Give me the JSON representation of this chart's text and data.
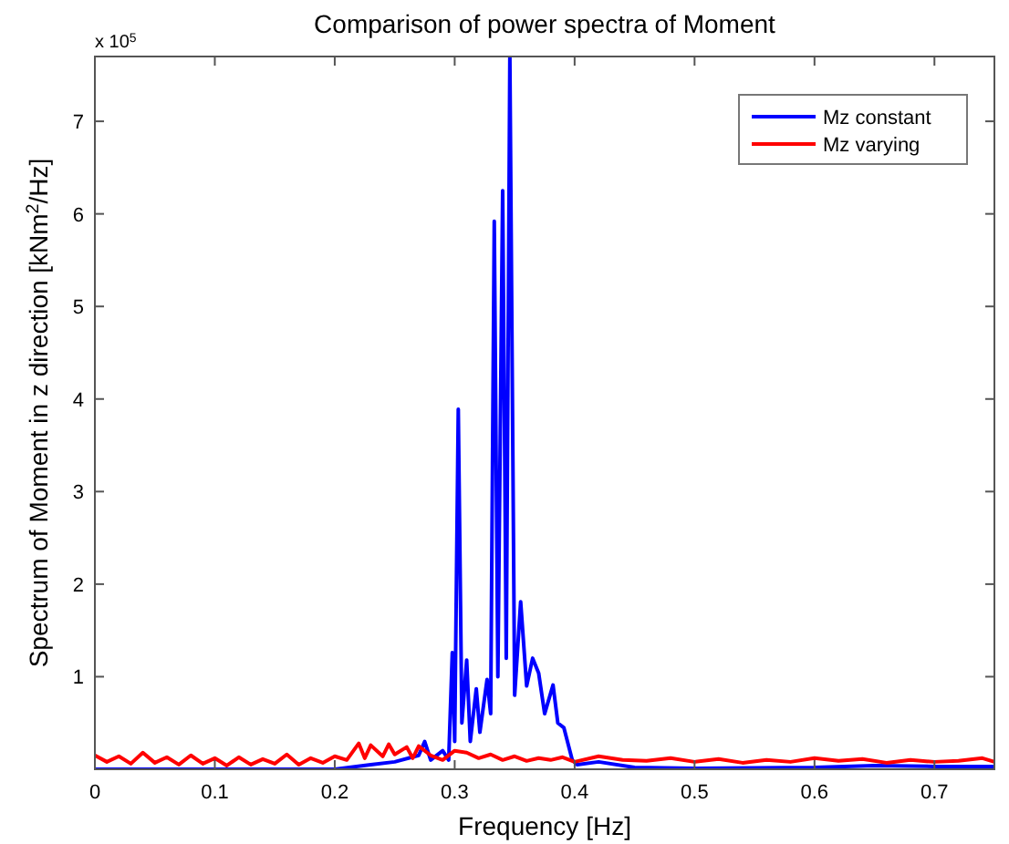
{
  "chart_data": {
    "type": "line",
    "title": "Comparison of power spectra of Moment",
    "xlabel": "Frequency [Hz]",
    "ylabel": "Spectrum of Moment in z direction [kNm$^{2}$/Hz]",
    "annotations": [
      "x 10$^{5}$"
    ],
    "xlim": [
      0,
      0.75
    ],
    "xticks": [
      0,
      0.1,
      0.2,
      0.3,
      0.4,
      0.5,
      0.6,
      0.7
    ],
    "ylim": [
      0,
      7.7
    ],
    "yticks": [
      1,
      2,
      3,
      4,
      5,
      6,
      7
    ],
    "legend": "top right",
    "grid": false,
    "series": [
      {
        "name": "Mz constant",
        "color": "#0000ff",
        "x": [
          0,
          0.1,
          0.2,
          0.23,
          0.25,
          0.27,
          0.275,
          0.28,
          0.29,
          0.295,
          0.298,
          0.3,
          0.303,
          0.306,
          0.31,
          0.313,
          0.318,
          0.321,
          0.327,
          0.33,
          0.333,
          0.336,
          0.34,
          0.343,
          0.346,
          0.35,
          0.355,
          0.36,
          0.365,
          0.37,
          0.375,
          0.382,
          0.386,
          0.391,
          0.398,
          0.402,
          0.42,
          0.45,
          0.5,
          0.6,
          0.65,
          0.7,
          0.75
        ],
        "values": [
          0,
          0,
          0,
          0.05,
          0.08,
          0.15,
          0.3,
          0.1,
          0.2,
          0.1,
          1.26,
          0.3,
          3.89,
          0.5,
          1.18,
          0.3,
          0.87,
          0.4,
          0.97,
          0.6,
          5.92,
          1.0,
          6.25,
          1.2,
          7.7,
          0.8,
          1.81,
          0.9,
          1.2,
          1.04,
          0.6,
          0.91,
          0.5,
          0.45,
          0.1,
          0.05,
          0.08,
          0.02,
          0.01,
          0.02,
          0.04,
          0.03,
          0.03
        ]
      },
      {
        "name": "Mz varying",
        "color": "#ff0000",
        "x": [
          0,
          0.01,
          0.02,
          0.03,
          0.04,
          0.05,
          0.06,
          0.07,
          0.08,
          0.09,
          0.1,
          0.11,
          0.12,
          0.13,
          0.14,
          0.15,
          0.16,
          0.17,
          0.18,
          0.19,
          0.2,
          0.21,
          0.22,
          0.225,
          0.23,
          0.24,
          0.245,
          0.25,
          0.26,
          0.265,
          0.27,
          0.28,
          0.29,
          0.3,
          0.31,
          0.32,
          0.33,
          0.34,
          0.35,
          0.36,
          0.37,
          0.38,
          0.39,
          0.4,
          0.42,
          0.44,
          0.46,
          0.48,
          0.5,
          0.52,
          0.54,
          0.56,
          0.58,
          0.6,
          0.62,
          0.64,
          0.66,
          0.68,
          0.7,
          0.72,
          0.74,
          0.75
        ],
        "values": [
          0.15,
          0.08,
          0.14,
          0.06,
          0.18,
          0.07,
          0.13,
          0.05,
          0.15,
          0.06,
          0.12,
          0.04,
          0.13,
          0.05,
          0.11,
          0.06,
          0.16,
          0.05,
          0.12,
          0.07,
          0.14,
          0.1,
          0.28,
          0.12,
          0.26,
          0.14,
          0.27,
          0.16,
          0.24,
          0.12,
          0.25,
          0.15,
          0.1,
          0.2,
          0.18,
          0.12,
          0.16,
          0.1,
          0.14,
          0.09,
          0.12,
          0.1,
          0.13,
          0.08,
          0.14,
          0.1,
          0.09,
          0.12,
          0.08,
          0.11,
          0.07,
          0.1,
          0.08,
          0.12,
          0.09,
          0.11,
          0.07,
          0.1,
          0.08,
          0.09,
          0.12,
          0.08
        ]
      }
    ]
  }
}
